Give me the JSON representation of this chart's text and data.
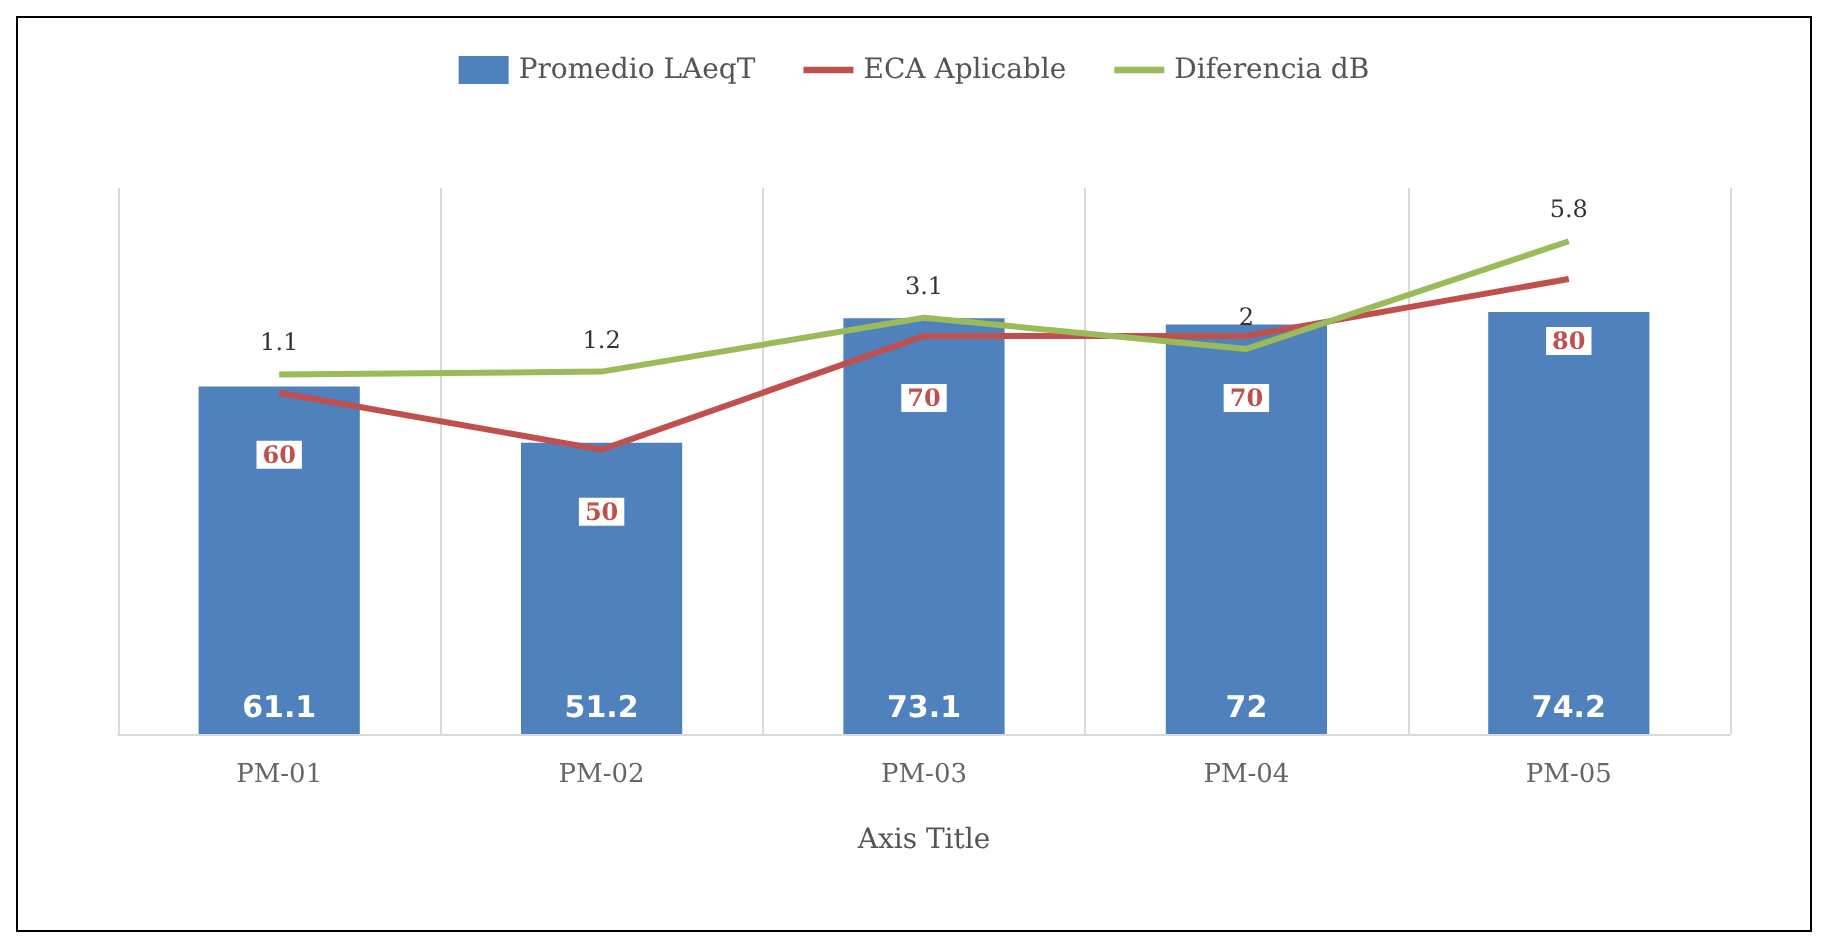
{
  "chart_data": {
    "type": "bar",
    "xlabel": "Axis Title",
    "categories": [
      "PM-01",
      "PM-02",
      "PM-03",
      "PM-04",
      "PM-05"
    ],
    "series": [
      {
        "name": "Promedio LAeqT",
        "color": "#4f81bd",
        "values": [
          61.1,
          51.2,
          73.1,
          72,
          74.2
        ]
      },
      {
        "name": "ECA Aplicable",
        "type": "line",
        "color": "#c0504d",
        "values": [
          60,
          50,
          70,
          70,
          80
        ]
      },
      {
        "name": "Diferencia dB",
        "type": "line",
        "axis": "y2",
        "color": "#9bbb59",
        "values": [
          1.1,
          1.2,
          3.1,
          2,
          5.8
        ]
      }
    ],
    "data_labels": true,
    "grid": "x",
    "legend": "top",
    "marker": "none"
  }
}
